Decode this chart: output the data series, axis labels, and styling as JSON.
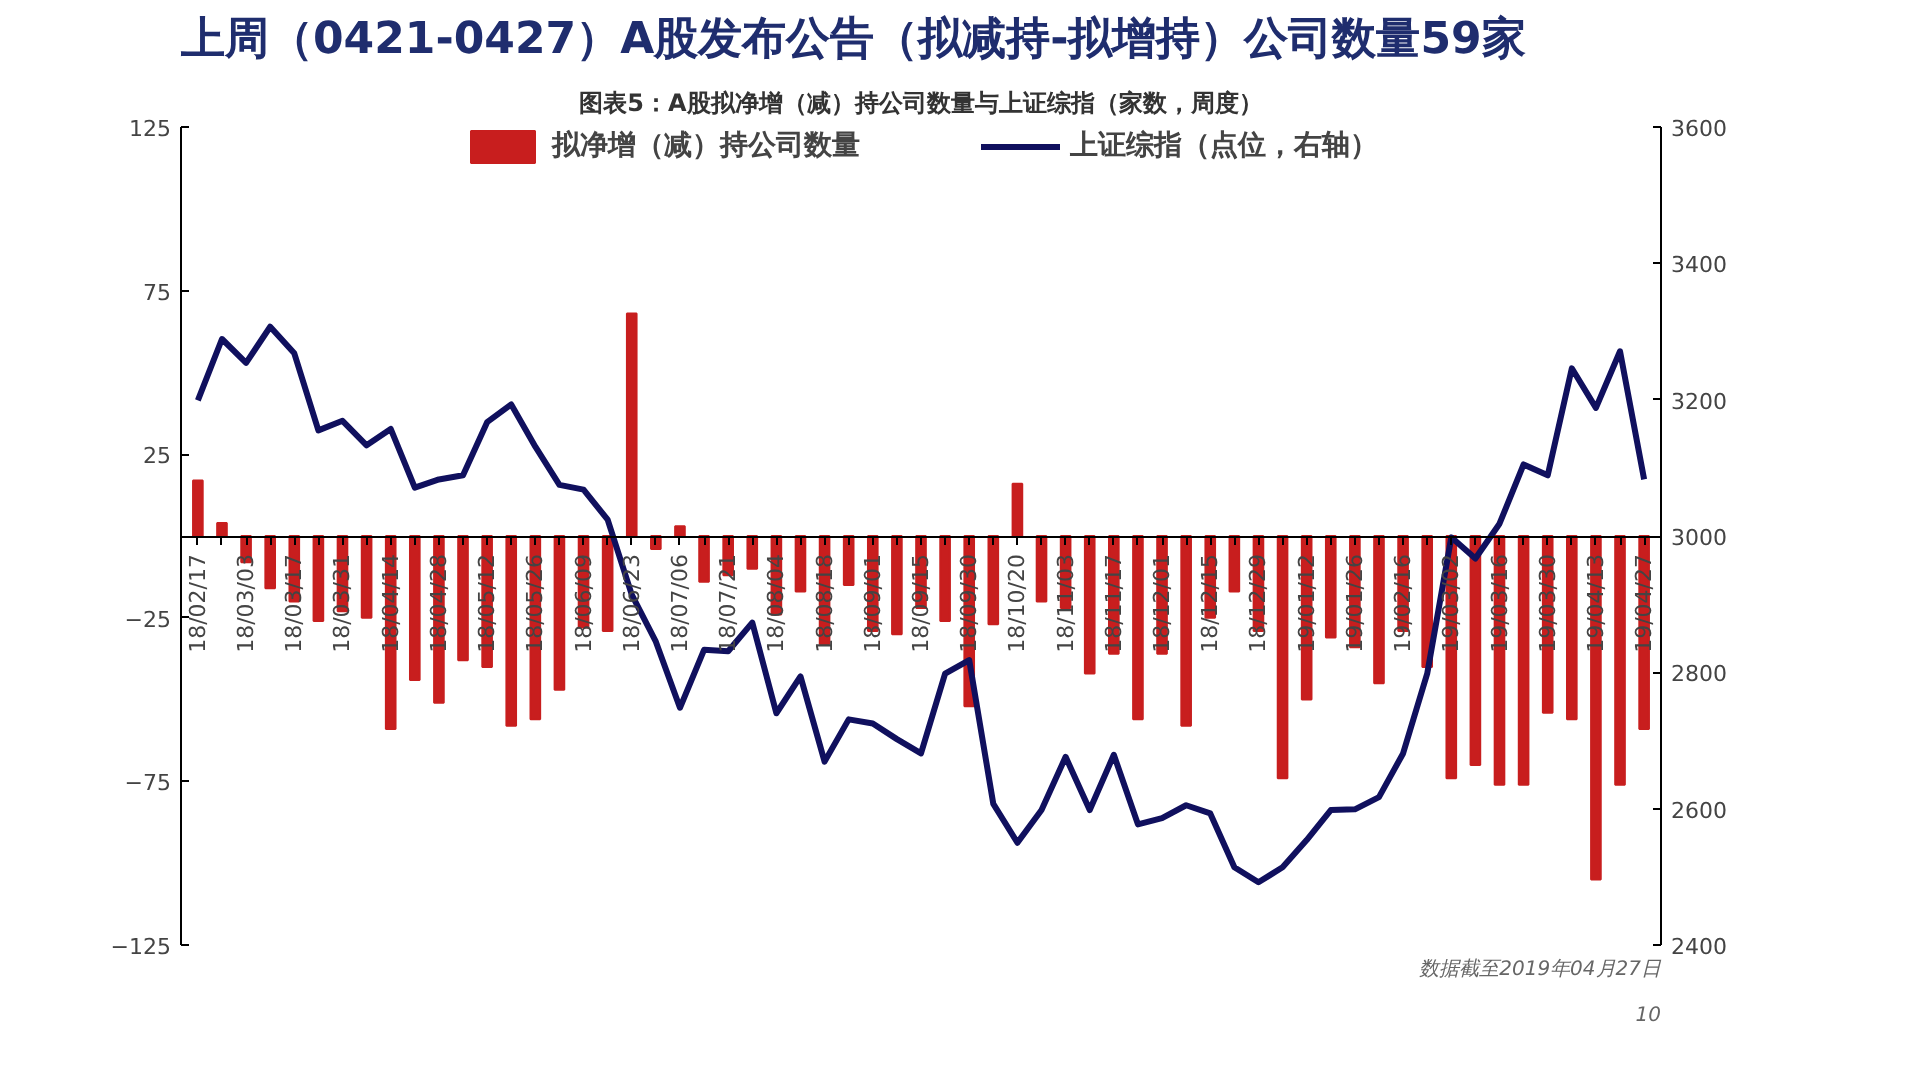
{
  "chart_data": {
    "type": "bar",
    "title": "上周（0421-0427）A股发布公告（拟减持-拟增持）公司数量59家",
    "subtitle": "图表5：A股拟净增（减）持公司数量与上证综指（家数，周度）",
    "categories": [
      "18/02/17",
      null,
      "18/03/03",
      null,
      "18/03/17",
      null,
      "18/03/31",
      null,
      "18/04/14",
      null,
      "18/04/28",
      null,
      "18/05/12",
      null,
      "18/05/26",
      null,
      "18/06/09",
      null,
      "18/06/23",
      null,
      "18/07/06",
      null,
      "18/07/21",
      null,
      "18/08/04",
      null,
      "18/08/18",
      null,
      "18/09/01",
      null,
      "18/09/15",
      null,
      "18/09/30",
      null,
      "18/10/20",
      null,
      "18/11/03",
      null,
      "18/11/17",
      null,
      "18/12/01",
      null,
      "18/12/15",
      null,
      "18/12/29",
      null,
      "19/01/12",
      null,
      "19/01/26",
      null,
      "19/02/16",
      null,
      "19/03/02",
      null,
      "19/03/16",
      null,
      "19/03/30",
      null,
      "19/04/13",
      null,
      "19/04/27"
    ],
    "series": [
      {
        "name": "拟净增（减）持公司数量",
        "color": "#c81e1e",
        "values": [
          17,
          4,
          -8,
          -16,
          -20,
          -26,
          -23,
          -25,
          -59,
          -44,
          -51,
          -38,
          -40,
          -58,
          -56,
          -47,
          -28,
          -29,
          68,
          -4,
          3,
          -14,
          -12,
          -10,
          -24,
          -17,
          -33,
          -15,
          -29,
          -30,
          -22,
          -26,
          -52,
          -27,
          16,
          -20,
          -22,
          -42,
          -36,
          -56,
          -36,
          -58,
          -25,
          -17,
          -29,
          -74,
          -50,
          -31,
          -34,
          -45,
          -29,
          -40,
          -74,
          -70,
          -76,
          -76,
          -54,
          -56,
          -105,
          -76,
          -59
        ]
      },
      {
        "name": "上证综指（点位，右轴）",
        "type": "line",
        "axis": "y2",
        "color": "#10105e",
        "values": [
          3199,
          3289,
          3254,
          3307,
          3268,
          3155,
          3169,
          3133,
          3157,
          3071,
          3083,
          3089,
          3167,
          3193,
          3131,
          3075,
          3068,
          3024,
          2914,
          2845,
          2748,
          2833,
          2831,
          2873,
          2740,
          2794,
          2669,
          2731,
          2725,
          2702,
          2681,
          2798,
          2818,
          2607,
          2550,
          2598,
          2676,
          2598,
          2679,
          2577,
          2586,
          2605,
          2593,
          2514,
          2492,
          2514,
          2554,
          2598,
          2599,
          2617,
          2681,
          2798,
          2998,
          2967,
          3018,
          3105,
          3089,
          3246,
          3188,
          3271,
          3083
        ]
      }
    ],
    "ylim": [
      -125,
      125
    ],
    "yticks": [
      -125,
      -75,
      -25,
      25,
      75,
      125
    ],
    "y2lim": [
      2400,
      3600
    ],
    "y2ticks": [
      2400,
      2600,
      2800,
      3000,
      3200,
      3400,
      3600
    ],
    "legend": "top",
    "annotations": [
      "数据截至2019年04月27日",
      "10"
    ]
  }
}
